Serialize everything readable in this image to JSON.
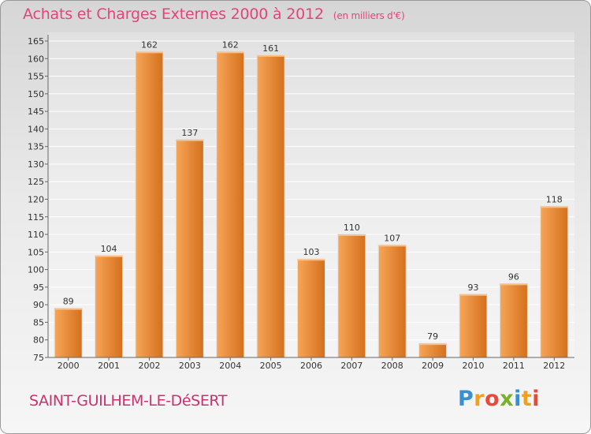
{
  "header": {
    "title": "Achats et Charges Externes 2000 à 2012",
    "unit": "(en milliers d'€)"
  },
  "footer": {
    "commune": "SAINT-GUILHEM-LE-DéSERT",
    "logo": {
      "letters": [
        "P",
        "r",
        "o",
        "x",
        "i",
        "t",
        "i"
      ],
      "colors": [
        "#3b8fd1",
        "#f0a020",
        "#e84a3a",
        "#79b12a",
        "#3b8fd1",
        "#f0a020",
        "#e84a3a"
      ]
    }
  },
  "colors": {
    "bar_light": "#f7a558",
    "bar_dark": "#d4701c",
    "grid": "#ffffff",
    "axis_text": "#333333"
  },
  "chart_data": {
    "type": "bar",
    "categories": [
      "2000",
      "2001",
      "2002",
      "2003",
      "2004",
      "2005",
      "2006",
      "2007",
      "2008",
      "2009",
      "2010",
      "2011",
      "2012"
    ],
    "values": [
      89,
      104,
      162,
      137,
      162,
      161,
      103,
      110,
      107,
      79,
      93,
      96,
      118
    ],
    "data_labels": [
      "89",
      "104",
      "162",
      "137",
      "162",
      "161",
      "103",
      "110",
      "107",
      "79",
      "93",
      "96",
      "118"
    ],
    "ylim": [
      75,
      165
    ],
    "yticks": [
      75,
      80,
      85,
      90,
      95,
      100,
      105,
      110,
      115,
      120,
      125,
      130,
      135,
      140,
      145,
      150,
      155,
      160,
      165
    ],
    "ytick_labels": [
      "75",
      "80",
      "85",
      "90",
      "95",
      "100",
      "105",
      "110",
      "115",
      "120",
      "125",
      "130",
      "135",
      "140",
      "145",
      "150",
      "155",
      "160",
      "165"
    ],
    "grid": true,
    "legend": "none"
  }
}
